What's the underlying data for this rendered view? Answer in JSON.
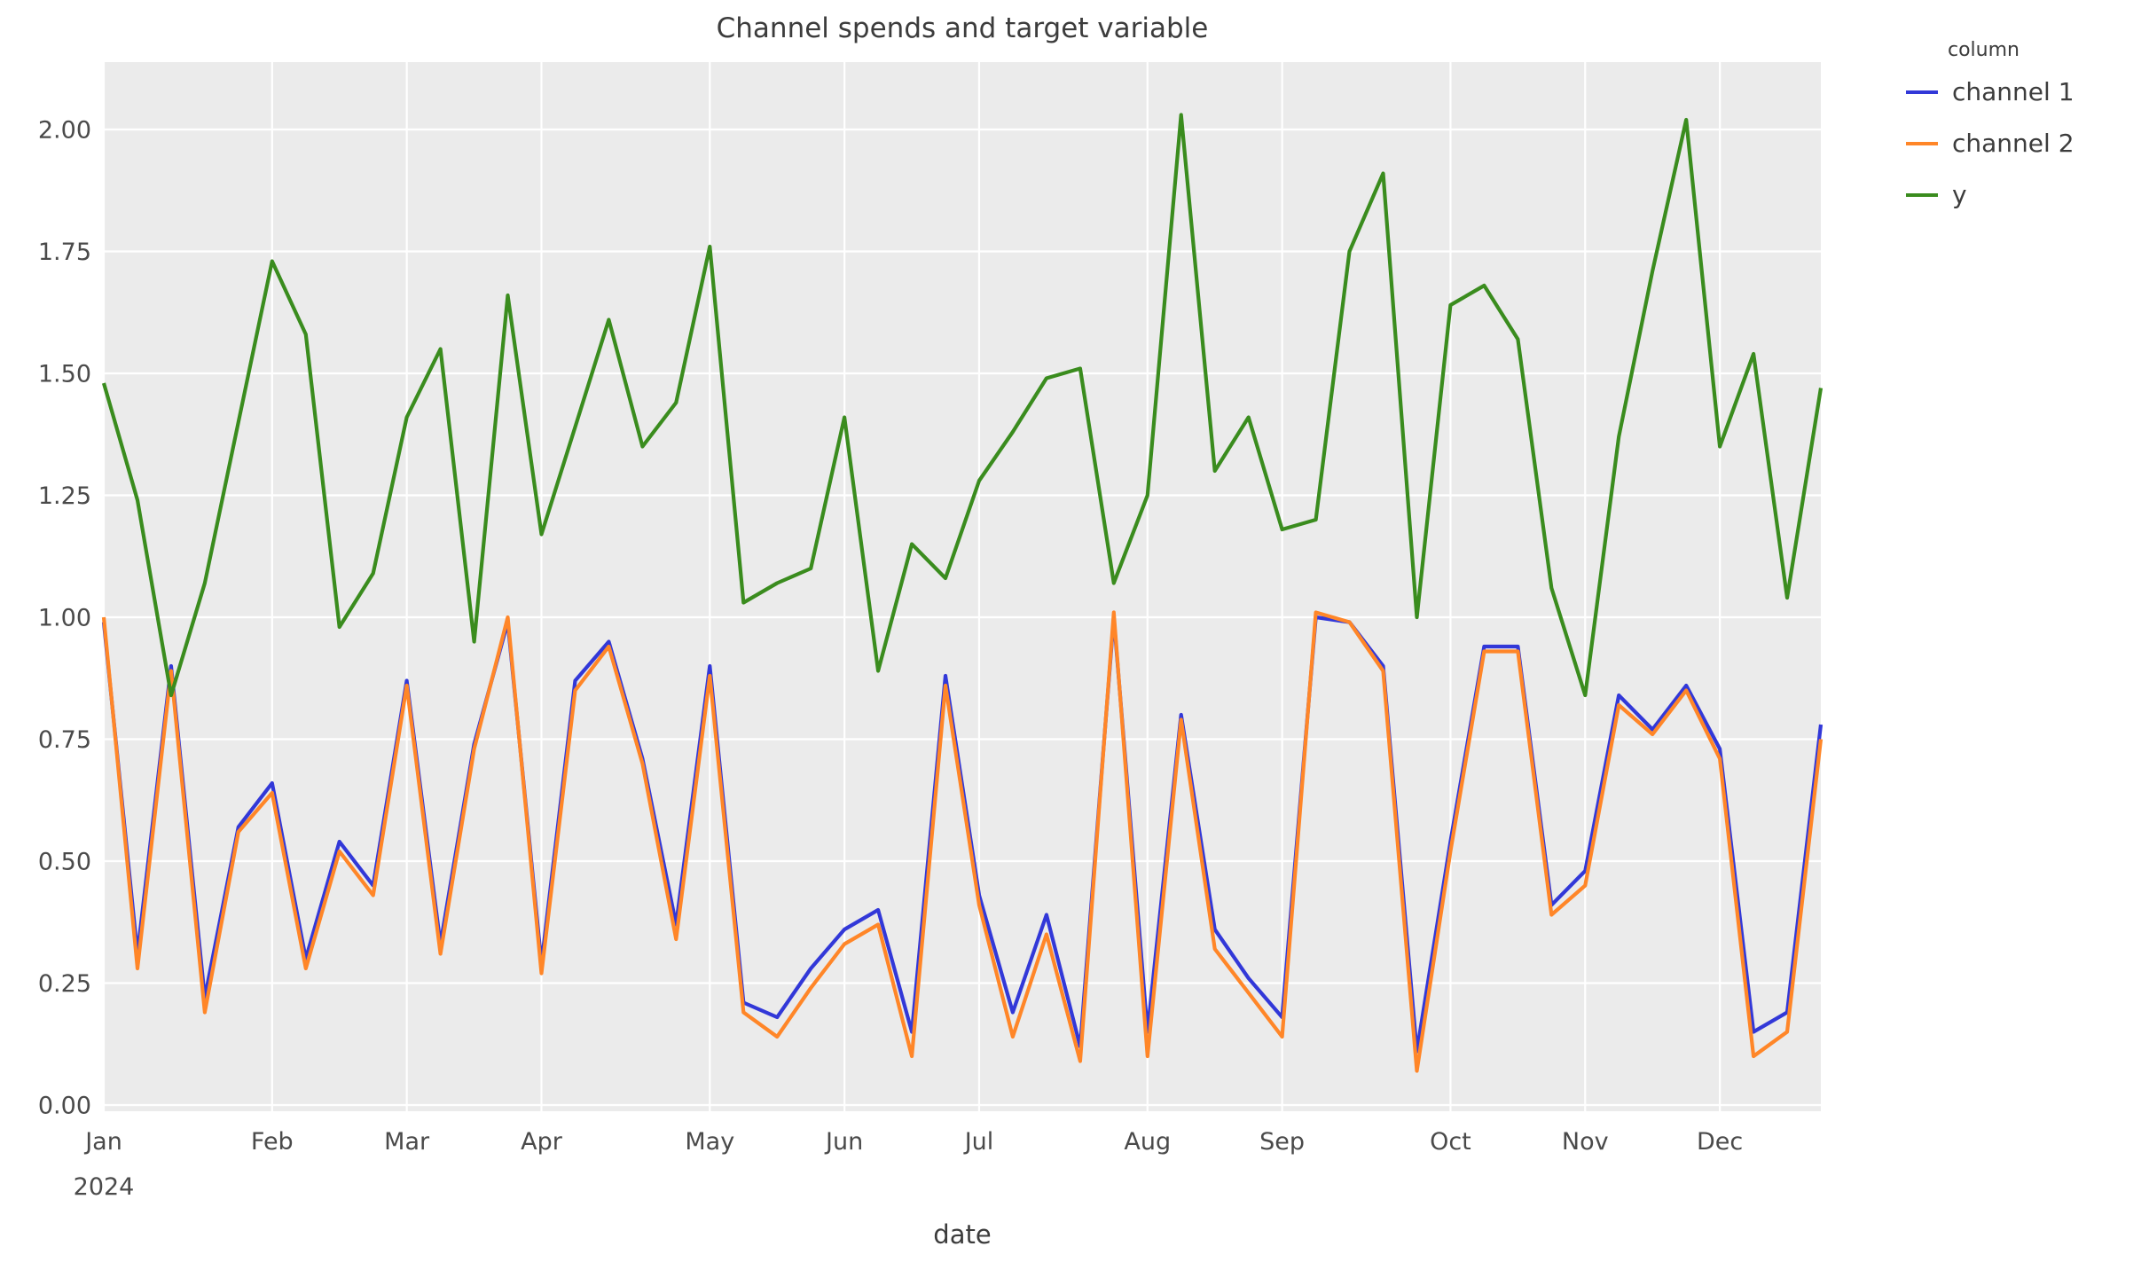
{
  "title": "Channel spends and target variable",
  "xlabel": "date",
  "legend": {
    "title": "column",
    "entries": [
      {
        "label": "channel 1",
        "color": "#3238d8"
      },
      {
        "label": "channel 2",
        "color": "#ff8628"
      },
      {
        "label": "y",
        "color": "#3a8c1e"
      }
    ]
  },
  "colors": {
    "plot_background": "#ebebeb",
    "figure_background": "#ffffff",
    "gridline": "#ffffff",
    "tick_text": "#4a4a4a",
    "title_text": "#3c3c3c"
  },
  "chart_data": {
    "type": "line",
    "title": "Channel spends and target variable",
    "xlabel": "date",
    "ylabel": "",
    "x_unit": "weekly (W-MON), year 2024",
    "ylim": [
      -0.015,
      2.14
    ],
    "grid": true,
    "legend_position": "upper right, outside plot",
    "y_ticks": [
      "0.00",
      "0.25",
      "0.50",
      "0.75",
      "1.00",
      "1.25",
      "1.50",
      "1.75",
      "2.00"
    ],
    "y_tick_values": [
      0.0,
      0.25,
      0.5,
      0.75,
      1.0,
      1.25,
      1.5,
      1.75,
      2.0
    ],
    "x_ticks": [
      {
        "label": "Jan",
        "sublabel": "2024",
        "week_index": 0
      },
      {
        "label": "Feb",
        "week_index": 5
      },
      {
        "label": "Mar",
        "week_index": 9
      },
      {
        "label": "Apr",
        "week_index": 13
      },
      {
        "label": "May",
        "week_index": 18
      },
      {
        "label": "Jun",
        "week_index": 22
      },
      {
        "label": "Jul",
        "week_index": 26
      },
      {
        "label": "Aug",
        "week_index": 31
      },
      {
        "label": "Sep",
        "week_index": 35
      },
      {
        "label": "Oct",
        "week_index": 40
      },
      {
        "label": "Nov",
        "week_index": 44
      },
      {
        "label": "Dec",
        "week_index": 48
      }
    ],
    "x": [
      "2024-01-01",
      "2024-01-08",
      "2024-01-15",
      "2024-01-22",
      "2024-01-29",
      "2024-02-05",
      "2024-02-12",
      "2024-02-19",
      "2024-02-26",
      "2024-03-04",
      "2024-03-11",
      "2024-03-18",
      "2024-03-25",
      "2024-04-01",
      "2024-04-08",
      "2024-04-15",
      "2024-04-22",
      "2024-04-29",
      "2024-05-06",
      "2024-05-13",
      "2024-05-20",
      "2024-05-27",
      "2024-06-03",
      "2024-06-10",
      "2024-06-17",
      "2024-06-24",
      "2024-07-01",
      "2024-07-08",
      "2024-07-15",
      "2024-07-22",
      "2024-07-29",
      "2024-08-05",
      "2024-08-12",
      "2024-08-19",
      "2024-08-26",
      "2024-09-02",
      "2024-09-09",
      "2024-09-16",
      "2024-09-23",
      "2024-09-30",
      "2024-10-07",
      "2024-10-14",
      "2024-10-21",
      "2024-10-28",
      "2024-11-04",
      "2024-11-11",
      "2024-11-18",
      "2024-11-25",
      "2024-12-02",
      "2024-12-09",
      "2024-12-16",
      "2024-12-23"
    ],
    "series": [
      {
        "name": "channel 1",
        "color": "#3238d8",
        "values": [
          0.99,
          0.31,
          0.9,
          0.22,
          0.57,
          0.66,
          0.3,
          0.54,
          0.45,
          0.87,
          0.33,
          0.74,
          0.99,
          0.29,
          0.87,
          0.95,
          0.71,
          0.37,
          0.9,
          0.21,
          0.18,
          0.28,
          0.36,
          0.4,
          0.15,
          0.88,
          0.43,
          0.19,
          0.39,
          0.12,
          1.0,
          0.15,
          0.8,
          0.36,
          0.26,
          0.18,
          1.0,
          0.99,
          0.9,
          0.11,
          0.54,
          0.94,
          0.94,
          0.41,
          0.48,
          0.84,
          0.77,
          0.86,
          0.73,
          0.15,
          0.19,
          0.78
        ]
      },
      {
        "name": "channel 2",
        "color": "#ff8628",
        "values": [
          1.0,
          0.28,
          0.89,
          0.19,
          0.56,
          0.64,
          0.28,
          0.52,
          0.43,
          0.86,
          0.31,
          0.73,
          1.0,
          0.27,
          0.85,
          0.94,
          0.7,
          0.34,
          0.88,
          0.19,
          0.14,
          0.24,
          0.33,
          0.37,
          0.1,
          0.86,
          0.41,
          0.14,
          0.35,
          0.09,
          1.01,
          0.1,
          0.79,
          0.32,
          0.23,
          0.14,
          1.01,
          0.99,
          0.89,
          0.07,
          0.52,
          0.93,
          0.93,
          0.39,
          0.45,
          0.82,
          0.76,
          0.85,
          0.71,
          0.1,
          0.15,
          0.75
        ]
      },
      {
        "name": "y",
        "color": "#3a8c1e",
        "values": [
          1.48,
          1.24,
          0.84,
          1.07,
          1.4,
          1.73,
          1.58,
          0.98,
          1.09,
          1.41,
          1.55,
          0.95,
          1.66,
          1.17,
          1.39,
          1.61,
          1.35,
          1.44,
          1.76,
          1.03,
          1.07,
          1.1,
          1.41,
          0.89,
          1.15,
          1.08,
          1.28,
          1.38,
          1.49,
          1.51,
          1.07,
          1.25,
          2.03,
          1.3,
          1.41,
          1.18,
          1.2,
          1.75,
          1.91,
          1.0,
          1.64,
          1.68,
          1.57,
          1.06,
          0.84,
          1.37,
          1.71,
          2.02,
          1.35,
          1.54,
          1.04,
          1.47
        ]
      }
    ]
  }
}
